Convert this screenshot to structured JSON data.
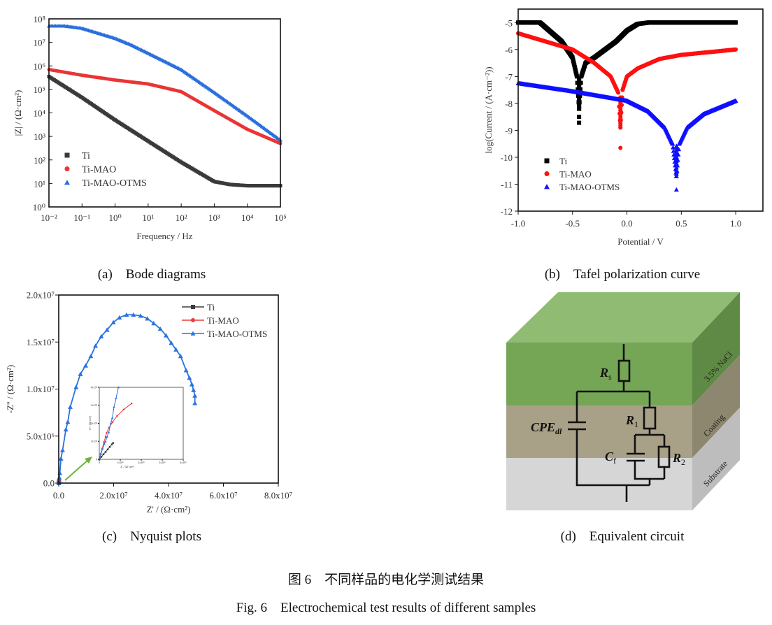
{
  "panel_captions": [
    "(a)　Bode diagrams",
    "(b)　Tafel polarization curve",
    "(c)　Nyquist plots",
    "(d)　Equivalent circuit"
  ],
  "figure_caption_cn": "图 6　不同样品的电化学测试结果",
  "figure_caption_en": "Fig. 6　Electrochemical test results of different samples",
  "chart_data": [
    {
      "id": "bode",
      "type": "scatter",
      "xlabel": "Frequency / Hz",
      "ylabel": "|Z| / (Ω·cm²)",
      "xscale": "log",
      "yscale": "log",
      "xlim": [
        0.01,
        100000
      ],
      "ylim": [
        1,
        100000000
      ],
      "x_ticks": [
        "10⁻²",
        "10⁻¹",
        "10⁰",
        "10¹",
        "10²",
        "10³",
        "10⁴",
        "10⁵"
      ],
      "y_ticks": [
        "10⁰",
        "10¹",
        "10²",
        "10³",
        "10⁴",
        "10⁵",
        "10⁶",
        "10⁷",
        "10⁸"
      ],
      "legend_position": "bottom-left",
      "series": [
        {
          "name": "Ti",
          "color": "#3a3a3a",
          "marker": "square",
          "x": [
            0.01,
            0.1,
            1,
            10,
            100,
            1000,
            3000,
            10000,
            100000
          ],
          "y": [
            350000,
            45000,
            5000,
            630,
            80,
            12,
            9,
            8,
            8
          ]
        },
        {
          "name": "Ti-MAO",
          "color": "#ea3535",
          "marker": "circle",
          "x": [
            0.01,
            0.1,
            1,
            10,
            100,
            1000,
            10000,
            100000
          ],
          "y": [
            700000,
            400000,
            250000,
            170000,
            80000,
            12500,
            2000,
            500
          ]
        },
        {
          "name": "Ti-MAO-OTMS",
          "color": "#2a6fdc",
          "marker": "triangle",
          "x": [
            0.01,
            0.03,
            0.1,
            1,
            3,
            10,
            100,
            1000,
            10000,
            100000
          ],
          "y": [
            50000000,
            50000000,
            40000000,
            15000000,
            8000000,
            3500000,
            700000,
            75000,
            7500,
            700
          ]
        }
      ]
    },
    {
      "id": "tafel",
      "type": "scatter",
      "xlabel": "Potential / V",
      "ylabel": "log(Current / (A·cm⁻²))",
      "xlim": [
        -1.0,
        1.25
      ],
      "ylim": [
        -12,
        -4.5
      ],
      "x_ticks": [
        -1.0,
        -0.5,
        0.0,
        0.5,
        1.0
      ],
      "x_tick_labels": [
        "-1.0",
        "-0.5",
        "0.0",
        "0.5",
        "1.0"
      ],
      "y_ticks": [
        -5,
        -6,
        -7,
        -8,
        -9,
        -10,
        -11,
        -12
      ],
      "y_tick_labels": [
        "-5",
        "-6",
        "-7",
        "-8",
        "-9",
        "-10",
        "-11",
        "-12"
      ],
      "legend_position": "bottom-left",
      "series": [
        {
          "name": "Ti",
          "color": "#000000",
          "marker": "square",
          "x": [
            -1.0,
            -0.8,
            -0.6,
            -0.5,
            -0.46,
            -0.44,
            -0.42,
            -0.38,
            -0.3,
            -0.2,
            -0.1,
            0.0,
            0.1,
            0.2,
            1.0
          ],
          "y": [
            -5.0,
            -5.0,
            -5.7,
            -6.3,
            -7.0,
            -8.2,
            -7.0,
            -6.5,
            -6.3,
            -6.0,
            -5.7,
            -5.3,
            -5.05,
            -5.0,
            -5.0
          ],
          "outliers": [
            [
              -0.44,
              -8.5
            ],
            [
              -0.44,
              -8.72
            ]
          ]
        },
        {
          "name": "Ti-MAO",
          "color": "#ff1010",
          "marker": "circle",
          "x": [
            -1.0,
            -0.5,
            -0.3,
            -0.15,
            -0.08,
            -0.06,
            -0.04,
            0.0,
            0.1,
            0.3,
            0.5,
            1.0
          ],
          "y": [
            -5.4,
            -6.0,
            -6.5,
            -7.0,
            -7.6,
            -8.9,
            -7.5,
            -7.0,
            -6.7,
            -6.35,
            -6.2,
            -6.0
          ],
          "outliers": [
            [
              -0.06,
              -9.65
            ]
          ]
        },
        {
          "name": "Ti-MAO-OTMS",
          "color": "#1010ff",
          "marker": "triangle",
          "x": [
            -1.0,
            -0.5,
            0.0,
            0.2,
            0.35,
            0.42,
            0.455,
            0.48,
            0.55,
            0.7,
            1.0
          ],
          "y": [
            -7.25,
            -7.55,
            -7.9,
            -8.3,
            -8.9,
            -9.5,
            -10.7,
            -9.5,
            -8.9,
            -8.4,
            -7.9
          ],
          "outliers": [
            [
              0.455,
              -11.2
            ]
          ]
        }
      ]
    },
    {
      "id": "nyquist",
      "type": "line",
      "xlabel": "Z' / (Ω·cm²)",
      "ylabel": "-Z'' / (Ω·cm²)",
      "xlim": [
        0,
        80000000
      ],
      "ylim": [
        0,
        20000000
      ],
      "x_ticks": [
        0,
        20000000,
        40000000,
        60000000,
        80000000
      ],
      "x_tick_labels": [
        "0.0",
        "2.0x10⁷",
        "4.0x10⁷",
        "6.0x10⁷",
        "8.0x10⁷"
      ],
      "y_ticks": [
        0,
        5000000,
        10000000,
        15000000,
        20000000
      ],
      "y_tick_labels": [
        "0.0",
        "5.0x10⁶",
        "1.0x10⁷",
        "1.5x10⁷",
        "2.0x10⁷"
      ],
      "legend_position": "top-right",
      "series": [
        {
          "name": "Ti",
          "color": "#3a3a3a",
          "marker": "square",
          "x": [
            0,
            60000
          ],
          "y": [
            0,
            90000
          ]
        },
        {
          "name": "Ti-MAO",
          "color": "#ee3a3a",
          "marker": "circle",
          "x": [
            0,
            150000
          ],
          "y": [
            0,
            310000
          ]
        },
        {
          "name": "Ti-MAO-OTMS",
          "color": "#2a72e0",
          "marker": "triangle",
          "x": [
            0,
            100000,
            200000,
            400000,
            800000,
            1400000,
            2600000,
            3300000,
            4200000,
            6300000,
            7900000,
            9800000,
            11700000,
            13400000,
            15500000,
            17600000,
            19900000,
            22100000,
            24700000,
            27200000,
            29800000,
            32300000,
            34600000,
            37000000,
            39100000,
            41000000,
            42700000,
            44400000,
            46400000,
            47600000,
            48500000,
            49100000,
            49600000,
            49600000
          ],
          "y": [
            0,
            300000,
            600000,
            1070000,
            2600000,
            3500000,
            5700000,
            6500000,
            8100000,
            10200000,
            11600000,
            12500000,
            13500000,
            14600000,
            15600000,
            16300000,
            17100000,
            17600000,
            17900000,
            17900000,
            17800000,
            17500000,
            17000000,
            16400000,
            15700000,
            14900000,
            14200000,
            13500000,
            12000000,
            11200000,
            10500000,
            9900000,
            9300000,
            8500000
          ]
        }
      ],
      "inset": {
        "xlabel": "Z' / (Ω·cm²)",
        "ylabel": "-Z'' / (Ω·cm²)",
        "xlim": [
          0,
          4000000
        ],
        "ylim": [
          0,
          4000000
        ],
        "x_ticks": [
          0,
          1000000,
          2000000,
          3000000,
          4000000
        ],
        "x_tick_labels": [
          "0",
          "1x10⁶",
          "2x10⁶",
          "3x10⁶",
          "4x10⁶"
        ],
        "y_ticks": [
          0,
          1000000,
          2000000,
          3000000,
          4000000
        ],
        "y_tick_labels": [
          "0",
          "1x10⁶",
          "2x10⁶",
          "3x10⁶",
          "4x10⁶"
        ],
        "series": [
          {
            "name": "Ti",
            "color": "#3a3a3a",
            "marker": "square",
            "x": [
              0,
              100000,
              200000,
              300000,
              400000,
              500000,
              600000,
              660000
            ],
            "y": [
              0,
              140000,
              280000,
              410000,
              550000,
              690000,
              830000,
              910000
            ]
          },
          {
            "name": "Ti-MAO",
            "color": "#ee3a3a",
            "marker": "circle",
            "x": [
              0,
              60000,
              140000,
              220000,
              300000,
              350000,
              460000,
              630000,
              850000,
              1160000,
              1540000
            ],
            "y": [
              0,
              300000,
              600000,
              950000,
              1250000,
              1470000,
              1760000,
              2060000,
              2410000,
              2760000,
              3100000
            ]
          },
          {
            "name": "Ti-MAO-OTMS",
            "color": "#2a72e0",
            "marker": "triangle",
            "x": [
              0,
              80000,
              160000,
              240000,
              300000,
              370000,
              450000,
              550000,
              620000,
              700000,
              800000,
              910000
            ],
            "y": [
              0,
              300000,
              600000,
              850000,
              1000000,
              1250000,
              1500000,
              2000000,
              2300000,
              2900000,
              3400000,
              4000000
            ]
          }
        ]
      }
    }
  ],
  "circuit": {
    "layers": [
      "3.5% NaCl",
      "Coating",
      "Substrate"
    ],
    "layer_colors": [
      "#7fae60",
      "#a79e83",
      "#d4d4d4"
    ],
    "components": {
      "rs": "R",
      "rs_sub": "s",
      "r1": "R",
      "r1_sub": "1",
      "r2": "R",
      "r2_sub": "2",
      "cf": "C",
      "cf_sub": "f",
      "cpe": "CPE",
      "cpe_sub": "dl"
    }
  }
}
